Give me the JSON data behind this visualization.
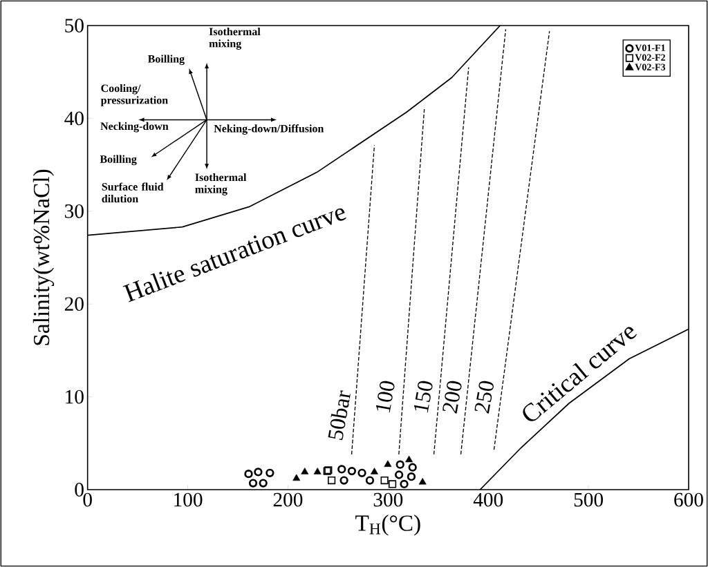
{
  "chart_data": {
    "type": "scatter",
    "xlabel": "T$_{H}$(°C)",
    "ylabel": "Salinity(wt%NaCl)",
    "xlim": [
      0,
      600
    ],
    "ylim": [
      0,
      50
    ],
    "xticks": [
      0,
      100,
      200,
      300,
      400,
      500,
      600
    ],
    "yticks": [
      0,
      10,
      20,
      30,
      40,
      50
    ],
    "grid": false,
    "legend": "top right",
    "series": [
      {
        "name": "V01-F1",
        "color": "#000000",
        "marker": "circle",
        "x": [
          160.7,
          170.3,
          182,
          165.2,
          175.3,
          253.7,
          256,
          263.8,
          273.9,
          281.8,
          312,
          310.9,
          324.4,
          323.2,
          316
        ],
        "values": [
          1.7,
          1.9,
          1.8,
          0.7,
          0.7,
          2.2,
          1.0,
          2.0,
          1.8,
          1.0,
          2.7,
          1.6,
          2.4,
          1.4,
          0.6
        ]
      },
      {
        "name": "V02-F2",
        "color": "#000000",
        "marker": "square",
        "x": [
          239.2,
          240.3,
          243.6,
          296.4,
          304.3
        ],
        "values": [
          2.0,
          2.1,
          1.0,
          1.0,
          0.6
        ]
      },
      {
        "name": "V02-F3",
        "color": "#000000",
        "marker": "triangle",
        "x": [
          208.5,
          216.8,
          229.5,
          286.3,
          299.7,
          320.9,
          334.4
        ],
        "values": [
          1.2,
          1.9,
          1.9,
          1.9,
          2.7,
          3.2,
          0.8
        ]
      },
      {
        "name": "Halite saturation curve",
        "type": "line",
        "color": "#000000",
        "line_style": "solid",
        "x": [
          0,
          94.6,
          161.9,
          229,
          318.8,
          363.6,
          411.8
        ],
        "values": [
          27.4,
          28.3,
          30.5,
          34.2,
          40.7,
          44.4,
          50
        ]
      },
      {
        "name": "Critical curve",
        "type": "line",
        "color": "#000000",
        "line_style": "solid",
        "x": [
          391.8,
          432.6,
          480.6,
          540.7,
          600
        ],
        "values": [
          0,
          4.5,
          9.3,
          14.1,
          17.3
        ]
      },
      {
        "name": "50bar",
        "type": "line",
        "color": "#000000",
        "line_style": "dashed",
        "x": [
          263.6,
          286.3
        ],
        "values": [
          3.8,
          37.1
        ]
      },
      {
        "name": "100",
        "type": "line",
        "color": "#000000",
        "line_style": "dashed",
        "x": [
          310.7,
          336.2
        ],
        "values": [
          3.8,
          41.1
        ]
      },
      {
        "name": "150",
        "type": "line",
        "color": "#000000",
        "line_style": "dashed",
        "x": [
          345.7,
          380.4
        ],
        "values": [
          3.8,
          45.5
        ]
      },
      {
        "name": "200",
        "type": "line",
        "color": "#000000",
        "line_style": "dashed",
        "x": [
          372.6,
          417.4
        ],
        "values": [
          3.8,
          49.6
        ]
      },
      {
        "name": "250",
        "type": "line",
        "color": "#000000",
        "line_style": "dashed",
        "x": [
          405.7,
          461.1
        ],
        "values": [
          4.3,
          49.4
        ]
      }
    ],
    "annotations": [
      "Isothermal mixing",
      "Boilling",
      "Cooling/ pressurization",
      "Necking-down",
      "Neking-down/Diffusion",
      "Boilling",
      "Surface fluid dilution",
      "Isothermal mixing"
    ]
  }
}
